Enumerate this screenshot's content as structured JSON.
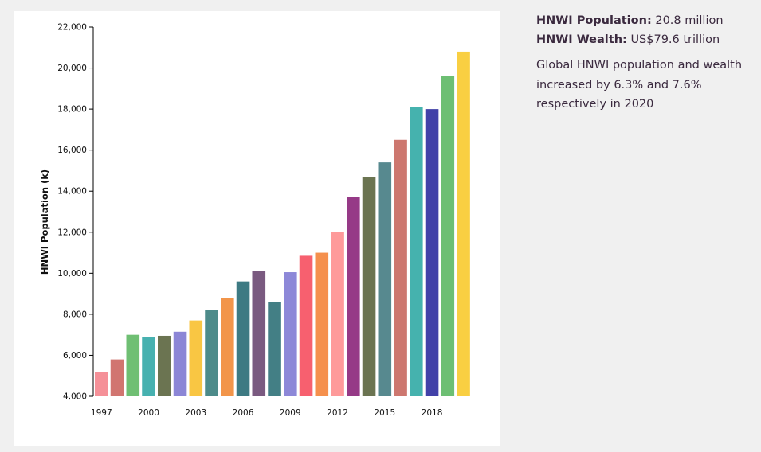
{
  "info": {
    "population_label": "HNWI Population:",
    "population_value": "20.8 million",
    "wealth_label": "HNWI Wealth:",
    "wealth_value": "US$79.6 trillion",
    "summary": "Global HNWI population and wealth increased by 6.3% and 7.6% respectively in 2020"
  },
  "chart_data": {
    "type": "bar",
    "ylabel": "HNWI Population (k)",
    "xlabel": "",
    "ylim": [
      4000,
      22000
    ],
    "yticks": [
      4000,
      6000,
      8000,
      10000,
      12000,
      14000,
      16000,
      18000,
      20000,
      22000
    ],
    "ytick_labels": [
      "4,000",
      "6,000",
      "8,000",
      "10,000",
      "12,000",
      "14,000",
      "16,000",
      "18,000",
      "20,000",
      "22,000"
    ],
    "categories": [
      "1997",
      "1998",
      "1999",
      "2000",
      "2001",
      "2002",
      "2003",
      "2004",
      "2005",
      "2006",
      "2007",
      "2008",
      "2009",
      "2010",
      "2011",
      "2012",
      "2013",
      "2014",
      "2015",
      "2016",
      "2017",
      "2018",
      "2019",
      "2020"
    ],
    "xtick_labels": [
      "1997",
      "2000",
      "2003",
      "2006",
      "2009",
      "2012",
      "2015",
      "2018"
    ],
    "values": [
      5200,
      5800,
      7000,
      6900,
      6950,
      7150,
      7700,
      8200,
      8800,
      9600,
      10100,
      8600,
      10050,
      10850,
      11000,
      12000,
      13700,
      14700,
      15400,
      16500,
      18100,
      18000,
      19600,
      20800
    ],
    "colors": [
      "#f59098",
      "#d17570",
      "#6fbf73",
      "#47b1b0",
      "#6b7451",
      "#8c86d6",
      "#f9c643",
      "#4d8b8a",
      "#f2954a",
      "#3d7a83",
      "#7a5a80",
      "#437f85",
      "#8d88d8",
      "#f7606f",
      "#f5904d",
      "#fe9a9a",
      "#963a87",
      "#6b7451",
      "#57898f",
      "#cd776f",
      "#45b2ae",
      "#4241a8",
      "#6dbf73",
      "#f9cf42"
    ],
    "grid": false,
    "legend": "none"
  }
}
